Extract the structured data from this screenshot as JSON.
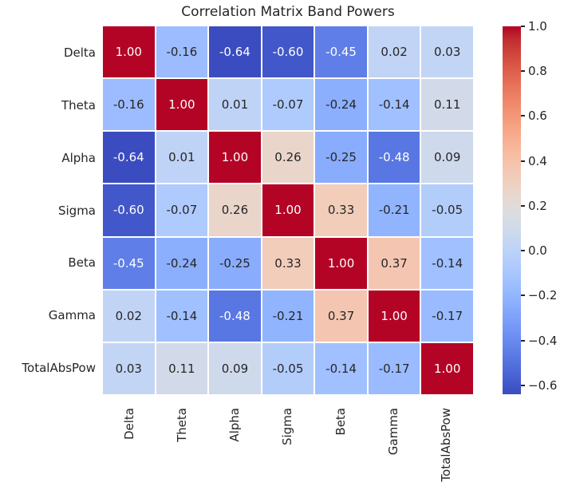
{
  "title": "Correlation Matrix Band Powers",
  "chart_data": {
    "type": "heatmap",
    "title": "Correlation Matrix Band Powers",
    "categories": [
      "Delta",
      "Theta",
      "Alpha",
      "Sigma",
      "Beta",
      "Gamma",
      "TotalAbsPow"
    ],
    "matrix": [
      [
        1.0,
        -0.16,
        -0.64,
        -0.6,
        -0.45,
        0.02,
        0.03
      ],
      [
        -0.16,
        1.0,
        0.01,
        -0.07,
        -0.24,
        -0.14,
        0.11
      ],
      [
        -0.64,
        0.01,
        1.0,
        0.26,
        -0.25,
        -0.48,
        0.09
      ],
      [
        -0.6,
        -0.07,
        0.26,
        1.0,
        0.33,
        -0.21,
        -0.05
      ],
      [
        -0.45,
        -0.24,
        -0.25,
        0.33,
        1.0,
        0.37,
        -0.14
      ],
      [
        0.02,
        -0.14,
        -0.48,
        -0.21,
        0.37,
        1.0,
        -0.17
      ],
      [
        0.03,
        0.11,
        0.09,
        -0.05,
        -0.14,
        -0.17,
        1.0
      ]
    ],
    "value_decimals": 2,
    "colormap": "coolwarm",
    "vmin": -0.64,
    "vmax": 1.0,
    "colorbar_ticks": [
      1.0,
      0.8,
      0.6,
      0.4,
      0.2,
      0.0,
      -0.2,
      -0.4,
      -0.6
    ],
    "colorbar_position": "right",
    "grid": false,
    "x_tick_rotation": 90
  },
  "colors": {
    "background": "#ffffff",
    "text": "#262626",
    "gridline": "#ffffff",
    "annotation_light": "#ffffff",
    "annotation_dark": "#262626",
    "colormap_stops": [
      "#3B4CC0",
      "#445ACC",
      "#4D68D7",
      "#5775E1",
      "#6282EA",
      "#6C8EF1",
      "#779AF7",
      "#82A5FB",
      "#8DB0FE",
      "#98B9FF",
      "#A3C2FF",
      "#AEC9FD",
      "#B8D0F9",
      "#C2D5F4",
      "#CCD9EE",
      "#D5DBE6",
      "#DDDDDD",
      "#E5D8D1",
      "#ECD3C5",
      "#F1CCB9",
      "#F5C4AD",
      "#F7BBA0",
      "#F7B194",
      "#F7A687",
      "#F49A7B",
      "#F18D6F",
      "#EC7F63",
      "#E57058",
      "#DE604D",
      "#D55042",
      "#CB3E38",
      "#C0282F",
      "#B40426"
    ]
  }
}
